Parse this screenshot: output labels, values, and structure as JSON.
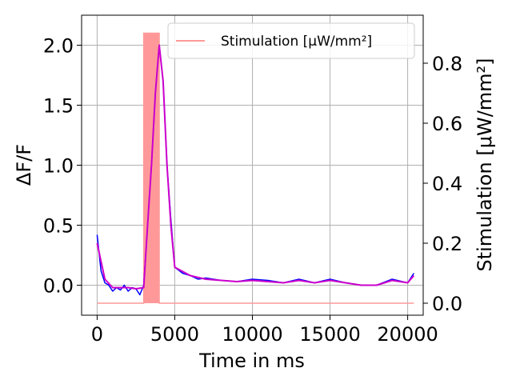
{
  "chart_data": {
    "type": "line",
    "title": "",
    "xlabel": "Time in ms",
    "ylabel_left": "ΔF/F",
    "ylabel_right": "Stimulation [μW/mm²]",
    "xlim": [
      -1000,
      21000
    ],
    "ylim_left": [
      -0.25,
      2.25
    ],
    "ylim_right": [
      -0.04,
      0.96
    ],
    "x_ticks": [
      0,
      5000,
      10000,
      15000,
      20000
    ],
    "y_ticks_left": [
      0.0,
      0.5,
      1.0,
      1.5,
      2.0
    ],
    "y_ticks_right": [
      0.0,
      0.2,
      0.4,
      0.6,
      0.8
    ],
    "grid": true,
    "legend": {
      "position": "top-right",
      "entries": [
        "Stimulation [μW/mm²]"
      ]
    },
    "colors": {
      "raw": "#0000ff",
      "smoothed": "#cc00cc",
      "stimulation": "#ff9999"
    },
    "series": [
      {
        "style": "raw",
        "axis": "left",
        "x": [
          0,
          250,
          500,
          750,
          1000,
          1250,
          1500,
          1750,
          2000,
          2250,
          2500,
          2750,
          3000,
          3250,
          3500,
          3750,
          4000,
          4250,
          4500,
          4750,
          5000,
          5500,
          6000,
          6500,
          7000,
          8000,
          9000,
          10000,
          11000,
          12000,
          13000,
          14000,
          15000,
          16000,
          17000,
          18000,
          19000,
          20000,
          20400
        ],
        "values": [
          0.42,
          0.12,
          0.02,
          0.0,
          -0.05,
          -0.02,
          -0.04,
          0.0,
          -0.05,
          -0.02,
          -0.03,
          -0.08,
          0.0,
          0.5,
          1.0,
          1.6,
          2.0,
          1.7,
          1.0,
          0.55,
          0.15,
          0.1,
          0.08,
          0.05,
          0.06,
          0.04,
          0.03,
          0.05,
          0.04,
          0.02,
          0.05,
          0.02,
          0.05,
          0.02,
          0.0,
          0.0,
          0.05,
          0.02,
          0.1
        ]
      },
      {
        "style": "smoothed",
        "axis": "left",
        "x": [
          0,
          500,
          1000,
          1500,
          2000,
          2500,
          3000,
          3250,
          3500,
          3750,
          4000,
          4250,
          4500,
          4750,
          5000,
          6000,
          7000,
          8000,
          9000,
          10000,
          11000,
          12000,
          13000,
          14000,
          15000,
          16000,
          17000,
          18000,
          19000,
          20000,
          20400
        ],
        "values": [
          0.35,
          0.05,
          -0.02,
          -0.02,
          -0.02,
          -0.03,
          -0.02,
          0.5,
          1.0,
          1.6,
          2.0,
          1.7,
          1.0,
          0.5,
          0.15,
          0.08,
          0.05,
          0.04,
          0.03,
          0.04,
          0.03,
          0.02,
          0.04,
          0.02,
          0.04,
          0.02,
          0.0,
          0.0,
          0.04,
          0.02,
          0.08
        ]
      }
    ],
    "stimulation": {
      "axis": "right",
      "x": [
        0,
        3000,
        3000,
        4000,
        4000,
        20400
      ],
      "values": [
        0.0,
        0.0,
        0.9,
        0.9,
        0.0,
        0.0
      ]
    }
  }
}
